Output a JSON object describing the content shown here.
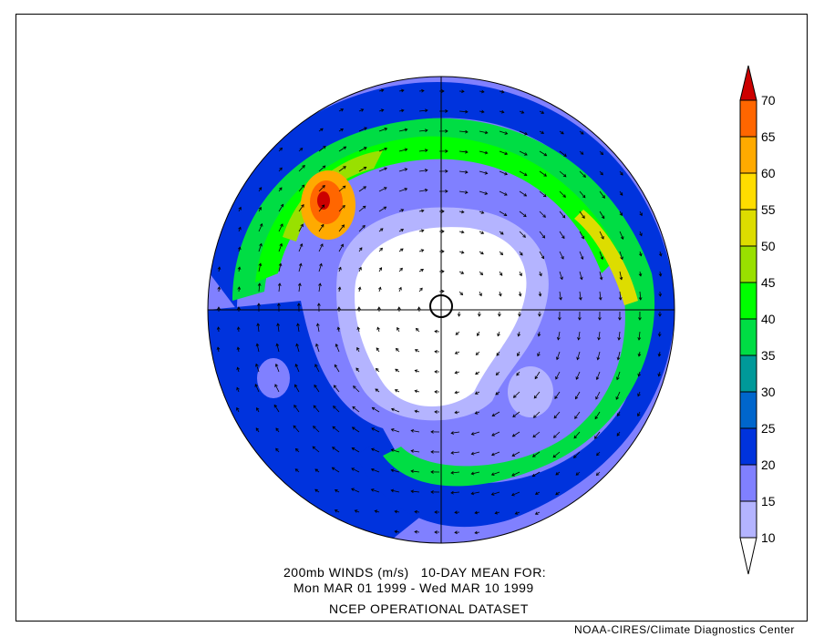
{
  "title": {
    "line1": "200mb WINDS (m/s)   10-DAY MEAN FOR:",
    "line2": "Mon MAR 01 1999 - Wed MAR 10 1999",
    "line3": "NCEP OPERATIONAL DATASET"
  },
  "credit": "NOAA-CIRES/Climate Diagnostics Center",
  "map": {
    "projection": "north polar stereographic",
    "variable": "200mb wind speed (shaded) with wind vectors",
    "units": "m/s"
  },
  "colorbar": {
    "labels": [
      "10",
      "15",
      "20",
      "25",
      "30",
      "35",
      "40",
      "45",
      "50",
      "55",
      "60",
      "65",
      "70"
    ],
    "colors": [
      "#b4b4ff",
      "#8080ff",
      "#0033dd",
      "#0066cc",
      "#009999",
      "#00dd44",
      "#00ff00",
      "#99e000",
      "#dddd00",
      "#ffdd00",
      "#ffaa00",
      "#ff6600"
    ],
    "below_color": "#ffffff",
    "above_color": "#cc0000"
  }
}
